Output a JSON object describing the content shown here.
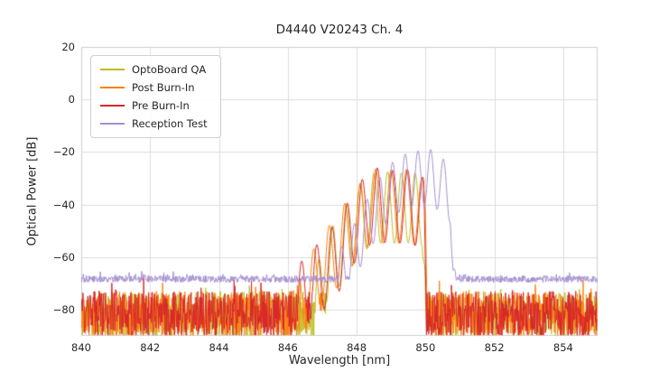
{
  "chart_data": {
    "type": "line",
    "title": "D4440 V20243 Ch. 4",
    "xlabel": "Wavelength [nm]",
    "ylabel": "Optical Power [dB]",
    "xlim": [
      840,
      855
    ],
    "ylim": [
      -90,
      20
    ],
    "xticks": [
      840,
      842,
      844,
      846,
      848,
      850,
      852,
      854
    ],
    "yticks": [
      20,
      0,
      -20,
      -40,
      -60,
      -80
    ],
    "grid": true,
    "grid_color": "#dcdcdc",
    "frame_color": "#cccccc",
    "background": "#ffffff",
    "legend_position": "upper left",
    "series": [
      {
        "name": "OptoBoard QA",
        "color": "#bcbd22",
        "seed": 11,
        "noise": {
          "baseline": -82,
          "amplitude": 9,
          "spike_chance": 0.05,
          "spike_extra": 6
        },
        "signal": {
          "envelope": [
            [
              846.8,
              -64
            ],
            [
              847.3,
              -48
            ],
            [
              847.7,
              -40
            ],
            [
              848.1,
              -32
            ],
            [
              848.5,
              -28
            ],
            [
              848.9,
              -27.5
            ],
            [
              849.3,
              -28
            ],
            [
              849.6,
              -27.5
            ],
            [
              849.9,
              -29
            ],
            [
              849.98,
              -45
            ],
            [
              850.03,
              -85
            ]
          ],
          "mode_spacing": 0.4,
          "mode_ref": 848.9,
          "mode_depth": 27
        }
      },
      {
        "name": "Post Burn-In",
        "color": "#ff7f0e",
        "seed": 22,
        "noise": {
          "baseline": -82,
          "amplitude": 9,
          "spike_chance": 0.05,
          "spike_extra": 6
        },
        "signal": {
          "envelope": [
            [
              846.35,
              -64
            ],
            [
              846.8,
              -56
            ],
            [
              847.25,
              -47
            ],
            [
              847.9,
              -35
            ],
            [
              848.35,
              -28
            ],
            [
              848.55,
              -26.5
            ],
            [
              849.0,
              -27
            ],
            [
              849.45,
              -26.5
            ],
            [
              849.8,
              -28
            ],
            [
              850.0,
              -32
            ],
            [
              850.08,
              -85
            ]
          ],
          "mode_spacing": 0.45,
          "mode_ref": 848.55,
          "mode_depth": 28
        }
      },
      {
        "name": "Pre Burn-In",
        "color": "#d62728",
        "seed": 33,
        "noise": {
          "baseline": -82,
          "amplitude": 9,
          "spike_chance": 0.05,
          "spike_extra": 6
        },
        "signal": {
          "envelope": [
            [
              846.3,
              -63
            ],
            [
              847.0,
              -53
            ],
            [
              847.5,
              -45
            ],
            [
              847.9,
              -35
            ],
            [
              848.3,
              -28
            ],
            [
              848.6,
              -26
            ],
            [
              849.0,
              -27
            ],
            [
              849.4,
              -26.5
            ],
            [
              849.8,
              -28
            ],
            [
              849.95,
              -30
            ],
            [
              850.05,
              -85
            ]
          ],
          "mode_spacing": 0.44,
          "mode_ref": 848.6,
          "mode_depth": 28
        }
      },
      {
        "name": "Reception Test",
        "color": "#a58fd0",
        "seed": 44,
        "noise": {
          "baseline": -68.4,
          "amplitude": 1.3,
          "spike_chance": 0.05,
          "spike_extra": 2.5
        },
        "signal": {
          "envelope": [
            [
              847.4,
              -60
            ],
            [
              847.9,
              -48
            ],
            [
              848.3,
              -38
            ],
            [
              848.7,
              -29
            ],
            [
              849.1,
              -23
            ],
            [
              849.45,
              -20.5
            ],
            [
              849.8,
              -19.5
            ],
            [
              850.15,
              -19
            ],
            [
              850.45,
              -22
            ],
            [
              850.6,
              -23.5
            ],
            [
              850.72,
              -26
            ],
            [
              850.8,
              -55
            ],
            [
              850.88,
              -67
            ]
          ],
          "mode_spacing": 0.37,
          "mode_ref": 850.15,
          "mode_depth": 21
        }
      }
    ]
  }
}
